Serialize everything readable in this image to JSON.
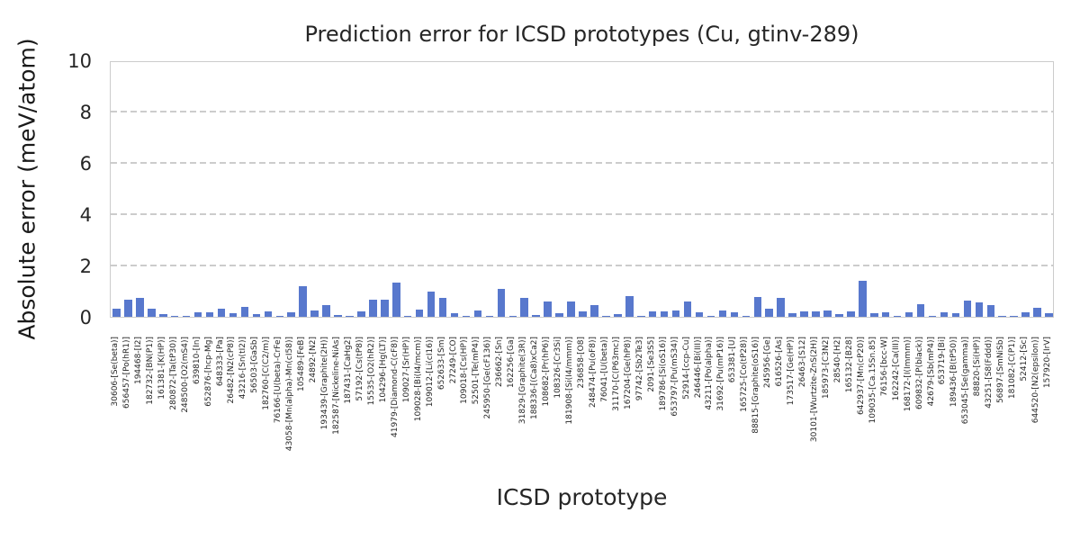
{
  "figure": {
    "title": "Prediction error for ICSD prototypes (Cu, gtinv-289)",
    "xlabel": "ICSD prototype",
    "ylabel": "Absolute error (meV/atom)"
  },
  "colors": {
    "bar": "#5878cd",
    "grid": "#cccccc",
    "spine": "#cccccc",
    "text": "#262626"
  },
  "chart_data": {
    "type": "bar",
    "title": "Prediction error for ICSD prototypes (Cu, gtinv-289)",
    "xlabel": "ICSD prototype",
    "ylabel": "Absolute error (meV/atom)",
    "ylim": [
      0,
      10
    ],
    "yticks": [
      0,
      2,
      4,
      6,
      8,
      10
    ],
    "grid": "horizontal-dashed",
    "legend": "none",
    "bar_color": "#5878cd",
    "categories": [
      "30606-[Se(beta)]",
      "656457-[Po(hR1)]",
      "194468-[I2]",
      "182732-[BN(P1)]",
      "161381-[K(HP)]",
      "280872-[Ta(tP30)]",
      "248500-[O2(mS4)]",
      "639810-[In]",
      "652876-[hcp-Mg]",
      "648333-[Pa]",
      "26482-[N2(cP8)]",
      "43216-[Sn(tI2)]",
      "56503-[GaSb]",
      "182760-[C(C2/m)]",
      "76166-[U(beta)-CrFe]",
      "43058-[Mn(alpha)-Mn(cI58)]",
      "105489-[FeB]",
      "24892-[N2]",
      "193439-[Graphite(2H)]",
      "182587-[Nickeline-NiAs]",
      "187431-[CaHg2]",
      "57192-[Cs(tP8)]",
      "15535-[O2(hR2)]",
      "104296-[Hg(LT)]",
      "41979-[Diamond-C(cF8)]",
      "109027-[Sr(HP)]",
      "109028-[Bi(I4/mcm)]",
      "109012-[Li(cI16)]",
      "652633-[Sm]",
      "27249-[CO]",
      "109018-[Cs(HP)]",
      "52501-[Te(mP4)]",
      "245950-[Ge(cF136)]",
      "236662-[Sn]",
      "162256-[Ga]",
      "31829-[Graphite(3R)]",
      "188336-[(Ca8)xCa2]",
      "108682-[Pr(hP6)]",
      "108326-[Cr3Si]",
      "181908-[Si(I4/mmm)]",
      "236858-[O8]",
      "248474-[Pu(oF8)]",
      "76041-[U(beta)]",
      "31170-[C(P63mc)]",
      "167204-[Ge(hP8)]",
      "97742-[Sb2Te3]",
      "2091-[Se3S5]",
      "189786-[Si(oS16)]",
      "653797-[Pu(mS34)]",
      "52914-[ccp-Cu]",
      "246446-[Bi(III)]",
      "43211-[Po(alpha)]",
      "31692-[Pu(mP16)]",
      "653381-[U]",
      "165725-[Co(tP28)]",
      "88815-[Graphite(oS16)]",
      "245956-[Ge]",
      "616526-[As]",
      "173517-[Ge(HP)]",
      "26463-[S12]",
      "30101-[Wurtzite-ZnS(2H)]",
      "185973-[C3N2]",
      "28540-[H2]",
      "165132-[B28]",
      "642937-[Mn(cP20)]",
      "109035-[Ca.15Sn.85]",
      "76156-[bcc-W]",
      "162242-[Ca(III)]",
      "168172-[I(Immm)]",
      "609832-[P(black)]",
      "42679-[Sb(mP4)]",
      "653719-[Bi]",
      "189436-[B(tP50)]",
      "653045-[Se(gamma)]",
      "88820-[Si(HP)]",
      "43251-[S8(Fddd)]",
      "56897-[SmNiSb]",
      "181082-[C(P1)]",
      "52412-[Sc]",
      "644520-[N2(epsilon)]",
      "157920-[IrV]"
    ],
    "values": [
      0.3,
      0.65,
      0.75,
      0.3,
      0.1,
      0.02,
      0.02,
      0.18,
      0.17,
      0.3,
      0.13,
      0.4,
      0.1,
      0.2,
      0.03,
      0.17,
      1.18,
      0.23,
      0.45,
      0.08,
      0.03,
      0.22,
      0.66,
      0.66,
      1.33,
      0.03,
      0.28,
      1.0,
      0.73,
      0.14,
      0.03,
      0.26,
      0.02,
      1.08,
      0.02,
      0.72,
      0.08,
      0.61,
      0.15,
      0.6,
      0.2,
      0.47,
      0.05,
      0.12,
      0.8,
      0.02,
      0.2,
      0.2,
      0.26,
      0.6,
      0.19,
      0.03,
      0.23,
      0.18,
      0.03,
      0.76,
      0.32,
      0.72,
      0.14,
      0.2,
      0.2,
      0.26,
      0.12,
      0.2,
      1.42,
      0.13,
      0.17,
      0.05,
      0.16,
      0.5,
      0.03,
      0.16,
      0.14,
      0.63,
      0.55,
      0.45,
      0.02,
      0.02,
      0.16,
      0.36,
      0.13
    ]
  }
}
